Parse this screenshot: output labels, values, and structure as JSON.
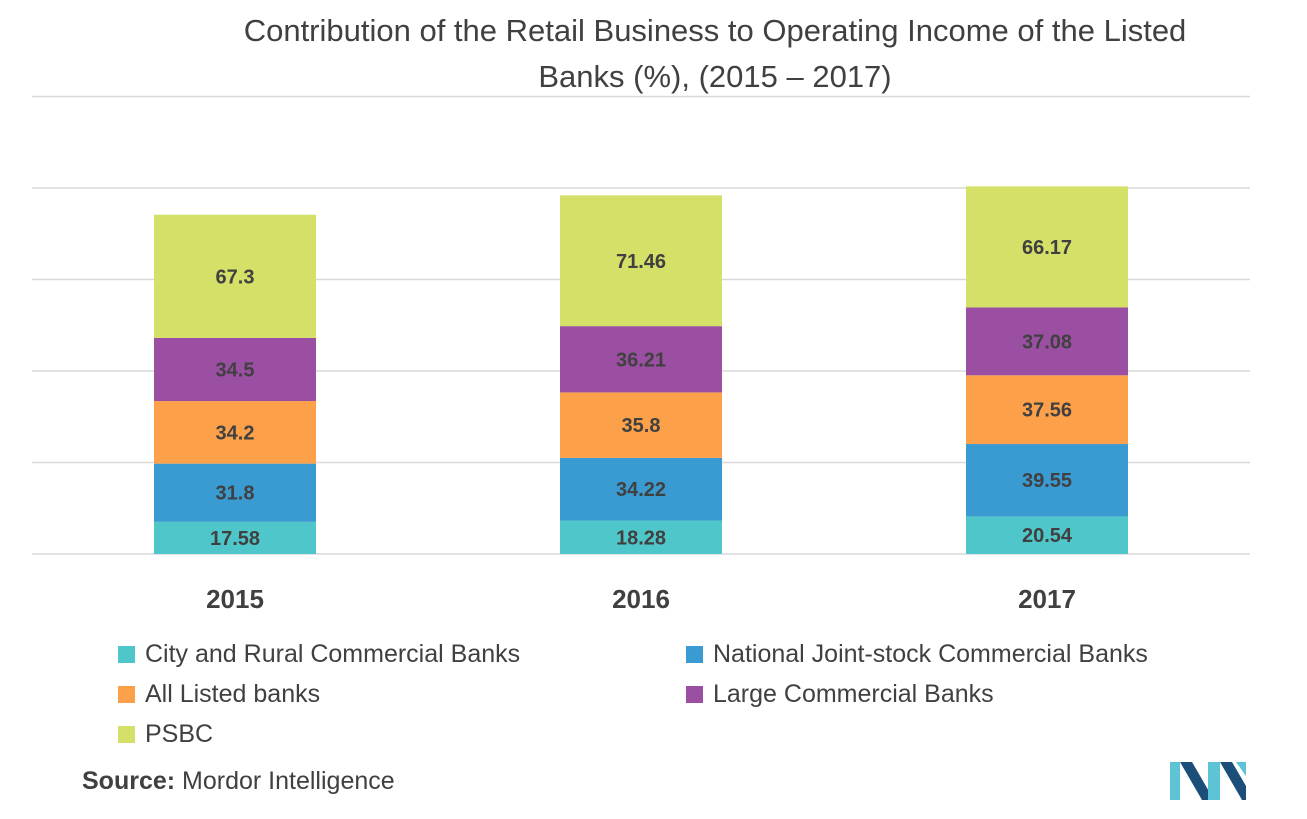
{
  "chart_data": {
    "type": "bar",
    "stacked": true,
    "title": "Contribution of the Retail Business to Operating Income of the Listed Banks (%), (2015 – 2017)",
    "categories": [
      "2015",
      "2016",
      "2017"
    ],
    "series": [
      {
        "name": "City and Rural Commercial Banks",
        "color": "#4fc6c9",
        "values": [
          17.58,
          18.28,
          20.54
        ]
      },
      {
        "name": "National Joint-stock Commercial Banks",
        "color": "#3a9bd2",
        "values": [
          31.8,
          34.22,
          39.55
        ]
      },
      {
        "name": "All Listed banks",
        "color": "#fca04a",
        "values": [
          34.2,
          35.8,
          37.56
        ]
      },
      {
        "name": "Large Commercial Banks",
        "color": "#9b4fa2",
        "values": [
          34.5,
          36.21,
          37.08
        ]
      },
      {
        "name": "PSBC",
        "color": "#d4e068",
        "values": [
          67.3,
          71.46,
          66.17
        ]
      }
    ],
    "ylim": [
      0,
      250
    ],
    "grid": true,
    "legend_position": "bottom",
    "y_axis_labels_shown": false
  },
  "source": {
    "label": "Source:",
    "text": "Mordor Intelligence"
  },
  "logo": {
    "name": "mordor-intelligence-logo",
    "color_dark": "#1b4f7a",
    "color_light": "#5cc4d4"
  }
}
